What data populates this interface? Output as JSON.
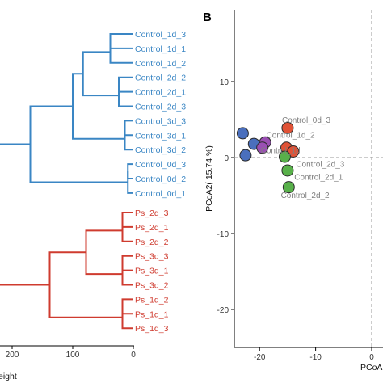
{
  "panel_b_label": "B",
  "colors": {
    "control": "#3a86c4",
    "ps": "#cf3b2f",
    "axis": "#000000",
    "dash": "#9a9a9a",
    "label_gray": "#7f7f7f",
    "pt_blue": "#4a6fbd",
    "pt_red": "#e05236",
    "pt_green": "#58b04a",
    "pt_purple": "#9a4fb3"
  },
  "chart_data": [
    {
      "type": "dendrogram",
      "xlabel": "eight",
      "xticks": [
        200,
        100,
        0
      ],
      "leaves": [
        {
          "label": "Control_1d_3",
          "group": "control"
        },
        {
          "label": "Control_1d_1",
          "group": "control"
        },
        {
          "label": "Control_1d_2",
          "group": "control"
        },
        {
          "label": "Control_2d_2",
          "group": "control"
        },
        {
          "label": "Control_2d_1",
          "group": "control"
        },
        {
          "label": "Control_2d_3",
          "group": "control"
        },
        {
          "label": "Control_3d_3",
          "group": "control"
        },
        {
          "label": "Control_3d_1",
          "group": "control"
        },
        {
          "label": "Control_3d_2",
          "group": "control"
        },
        {
          "label": "Control_0d_3",
          "group": "control"
        },
        {
          "label": "Control_0d_2",
          "group": "control"
        },
        {
          "label": "Control_0d_1",
          "group": "control"
        },
        {
          "label": "Ps_2d_3",
          "group": "ps"
        },
        {
          "label": "Ps_2d_1",
          "group": "ps"
        },
        {
          "label": "Ps_2d_2",
          "group": "ps"
        },
        {
          "label": "Ps_3d_3",
          "group": "ps"
        },
        {
          "label": "Ps_3d_1",
          "group": "ps"
        },
        {
          "label": "Ps_3d_2",
          "group": "ps"
        },
        {
          "label": "Ps_1d_2",
          "group": "ps"
        },
        {
          "label": "Ps_1d_1",
          "group": "ps"
        },
        {
          "label": "Ps_1d_3",
          "group": "ps"
        }
      ],
      "merges": [
        {
          "a": "L0",
          "b": "L1",
          "height": 38,
          "group": "control"
        },
        {
          "a": "N0",
          "b": "L2",
          "height": 38,
          "group": "control"
        },
        {
          "a": "L3",
          "b": "L4",
          "height": 24,
          "group": "control"
        },
        {
          "a": "N2",
          "b": "L5",
          "height": 24,
          "group": "control"
        },
        {
          "a": "N1",
          "b": "N3",
          "height": 83,
          "group": "control"
        },
        {
          "a": "L6",
          "b": "L7",
          "height": 14,
          "group": "control"
        },
        {
          "a": "N5",
          "b": "L8",
          "height": 14,
          "group": "control"
        },
        {
          "a": "N4",
          "b": "N6",
          "height": 100,
          "group": "control"
        },
        {
          "a": "L9",
          "b": "L10",
          "height": 9,
          "group": "control"
        },
        {
          "a": "N8",
          "b": "L11",
          "height": 9,
          "group": "control"
        },
        {
          "a": "N7",
          "b": "N9",
          "height": 170,
          "group": "control"
        },
        {
          "a": "L12",
          "b": "L13",
          "height": 18,
          "group": "ps"
        },
        {
          "a": "N11",
          "b": "L14",
          "height": 18,
          "group": "ps"
        },
        {
          "a": "L15",
          "b": "L16",
          "height": 18,
          "group": "ps"
        },
        {
          "a": "N13",
          "b": "L17",
          "height": 18,
          "group": "ps"
        },
        {
          "a": "N12",
          "b": "N14",
          "height": 78,
          "group": "ps"
        },
        {
          "a": "L18",
          "b": "L19",
          "height": 18,
          "group": "ps"
        },
        {
          "a": "N16",
          "b": "L20",
          "height": 18,
          "group": "ps"
        },
        {
          "a": "N15",
          "b": "N17",
          "height": 138,
          "group": "ps"
        }
      ],
      "xlim": [
        220,
        0
      ]
    },
    {
      "type": "scatter",
      "ylabel": "PCoA2( 15.74 %)",
      "xlabel": "PCoA",
      "xlim": [
        -24.5,
        0.2
      ],
      "ylim": [
        -24.5,
        17.5
      ],
      "yticks": [
        10,
        0,
        -10,
        -20
      ],
      "xticks": [
        -20,
        -10,
        0
      ],
      "points": [
        {
          "x": -23.0,
          "y": 3.2,
          "color": "pt_blue"
        },
        {
          "x": -21.0,
          "y": 1.8,
          "color": "pt_blue"
        },
        {
          "x": -22.5,
          "y": 0.3,
          "color": "pt_blue"
        },
        {
          "x": -19.0,
          "y": 2.0,
          "color": "pt_purple"
        },
        {
          "x": -19.5,
          "y": 1.3,
          "color": "pt_purple"
        },
        {
          "x": -15.0,
          "y": 3.9,
          "color": "pt_red"
        },
        {
          "x": -15.2,
          "y": 1.3,
          "color": "pt_red"
        },
        {
          "x": -14.0,
          "y": 0.8,
          "color": "pt_red"
        },
        {
          "x": -15.5,
          "y": 0.1,
          "color": "pt_green"
        },
        {
          "x": -15.0,
          "y": -1.7,
          "color": "pt_green"
        },
        {
          "x": -14.8,
          "y": -3.9,
          "color": "pt_green"
        }
      ],
      "labels": [
        {
          "text": "Control_0d_3",
          "x": -16.0,
          "y": 4.6
        },
        {
          "text": "Control_1d_2",
          "x": -18.8,
          "y": 2.6
        },
        {
          "text": "Control_1d",
          "x": -19.8,
          "y": 0.6
        },
        {
          "text": "Control_2d_3",
          "x": -13.5,
          "y": -1.2
        },
        {
          "text": "Control_2d_1",
          "x": -13.8,
          "y": -2.9
        },
        {
          "text": "Control_2d_2",
          "x": -16.2,
          "y": -5.3
        }
      ]
    }
  ]
}
